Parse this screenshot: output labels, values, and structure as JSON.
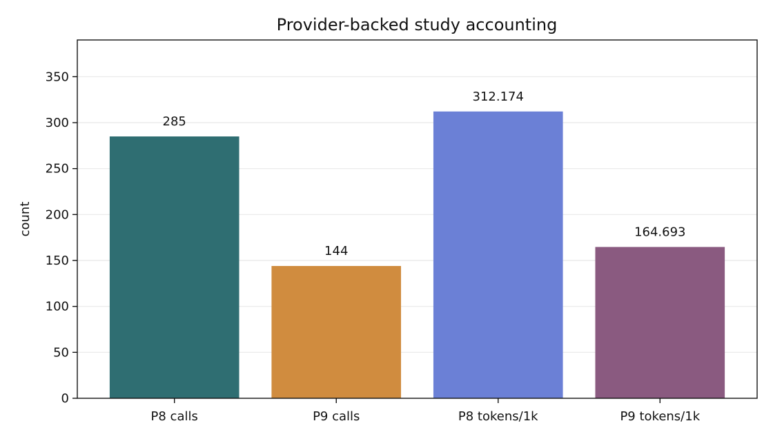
{
  "chart_data": {
    "type": "bar",
    "title": "Provider-backed study accounting",
    "xlabel": "",
    "ylabel": "count",
    "categories": [
      "P8 calls",
      "P9 calls",
      "P8 tokens/1k",
      "P9 tokens/1k"
    ],
    "values": [
      285,
      144,
      312.174,
      164.693
    ],
    "data_labels": [
      "285",
      "144",
      "312.174",
      "164.693"
    ],
    "colors": [
      "#2f6e72",
      "#d08c3f",
      "#6b80d6",
      "#8a5a80"
    ],
    "ylim": [
      0,
      390
    ],
    "yticks": [
      0,
      50,
      100,
      150,
      200,
      250,
      300,
      350
    ],
    "grid": "y",
    "legend": "none"
  }
}
